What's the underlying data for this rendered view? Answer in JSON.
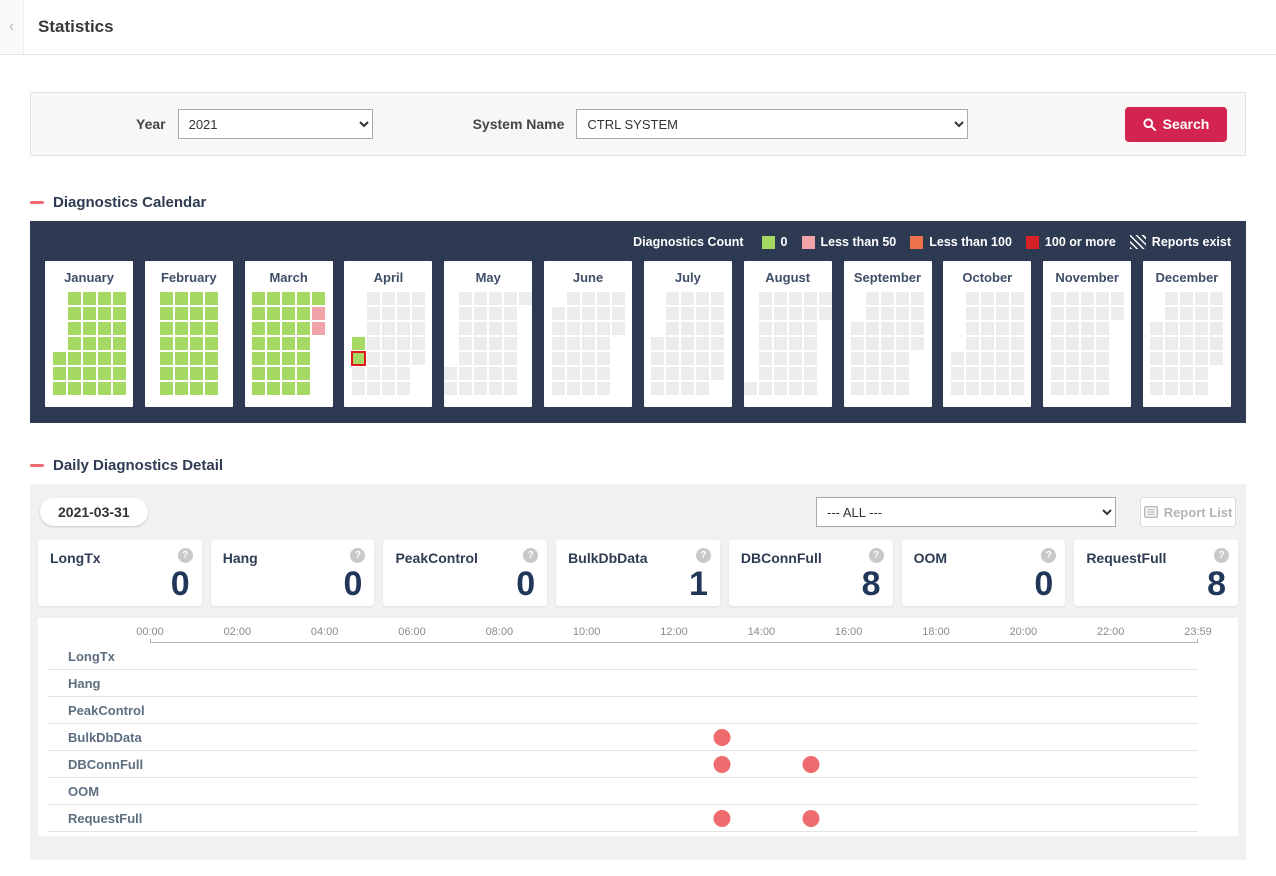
{
  "header": {
    "title": "Statistics",
    "back_icon": "‹"
  },
  "filters": {
    "year_label": "Year",
    "year_value": "2021",
    "system_label": "System Name",
    "system_value": "CTRL  SYSTEM",
    "search_label": "Search"
  },
  "calendar_section": {
    "title": "Diagnostics Calendar",
    "legend_title": "Diagnostics Count",
    "legend": [
      {
        "label": "0",
        "type": "green"
      },
      {
        "label": "Less than 50",
        "type": "pink"
      },
      {
        "label": "Less than 100",
        "type": "orange"
      },
      {
        "label": "100 or more",
        "type": "red"
      },
      {
        "label": "Reports exist",
        "type": "hatch"
      }
    ],
    "year": 2021,
    "month_names": [
      "January",
      "February",
      "March",
      "April",
      "May",
      "June",
      "July",
      "August",
      "September",
      "October",
      "November",
      "December"
    ],
    "last_data_date": "2021-04-02",
    "today": "2021-04-02",
    "green_hatch_days": [
      "2021-03-26",
      "2021-03-27",
      "2021-03-28",
      "2021-03-29",
      "2021-04-01",
      "2021-04-02"
    ],
    "pink_hatch_days": [
      "2021-03-30",
      "2021-03-31"
    ],
    "colors": {
      "green": "#a6d964",
      "pink": "#f0a3a8",
      "orange": "#ed7249",
      "red": "#d62128",
      "empty": "#ececec",
      "panel": "#2d3a52",
      "today_border": "#e0191f"
    }
  },
  "daily_section": {
    "title": "Daily Diagnostics Detail",
    "date_badge": "2021-03-31",
    "filter_value": "--- ALL ---",
    "report_list_label": "Report List",
    "cards": [
      {
        "name": "LongTx",
        "value": "0"
      },
      {
        "name": "Hang",
        "value": "0"
      },
      {
        "name": "PeakControl",
        "value": "0"
      },
      {
        "name": "BulkDbData",
        "value": "1"
      },
      {
        "name": "DBConnFull",
        "value": "8"
      },
      {
        "name": "OOM",
        "value": "0"
      },
      {
        "name": "RequestFull",
        "value": "8"
      }
    ],
    "chart_data": {
      "type": "scatter",
      "title": "Daily diagnostics timeline for 2021-03-31",
      "x_ticks": [
        "00:00",
        "02:00",
        "04:00",
        "06:00",
        "08:00",
        "10:00",
        "12:00",
        "14:00",
        "16:00",
        "18:00",
        "20:00",
        "22:00",
        "23:59"
      ],
      "x_range_minutes": [
        0,
        1439
      ],
      "rows": [
        {
          "name": "LongTx",
          "events": []
        },
        {
          "name": "Hang",
          "events": []
        },
        {
          "name": "PeakControl",
          "events": []
        },
        {
          "name": "BulkDbData",
          "events": [
            "13:05"
          ]
        },
        {
          "name": "DBConnFull",
          "events": [
            "13:05",
            "15:08"
          ]
        },
        {
          "name": "OOM",
          "events": []
        },
        {
          "name": "RequestFull",
          "events": [
            "13:05",
            "15:08"
          ]
        }
      ],
      "dot_color": "#ee6b6e",
      "grid": "horizontal-row-separators",
      "legend_position": "none"
    }
  }
}
